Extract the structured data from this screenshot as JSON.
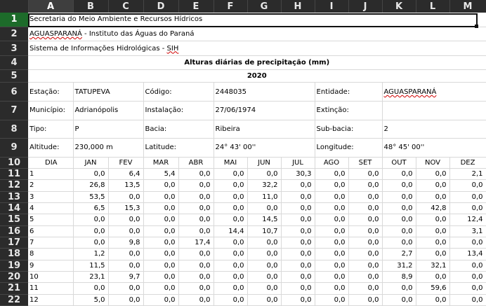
{
  "columns": [
    "A",
    "B",
    "C",
    "D",
    "E",
    "F",
    "G",
    "H",
    "I",
    "J",
    "K",
    "L",
    "M"
  ],
  "header": {
    "line1": "Secretaria do Meio Ambiente e Recursos Hídricos",
    "line2_name": "AGUASPARANÁ",
    "line2_rest": " - Instituto das Águas do Paraná",
    "line3_prefix": "Sistema de Informações Hidrológicas - ",
    "line3_abbr": "SIH",
    "title": "Alturas diárias de precipitação (mm)",
    "year": "2020"
  },
  "station": {
    "estacao_label": "Estação:",
    "estacao": "TATUPEVA",
    "codigo_label": "Código:",
    "codigo": "2448035",
    "entidade_label": "Entidade:",
    "entidade": "AGUASPARANÁ",
    "municipio_label": "Município:",
    "municipio": "Adrianópolis",
    "instalacao_label": "Instalação:",
    "instalacao": "27/06/1974",
    "extincao_label": "Extinção:",
    "extincao": "",
    "tipo_label": "Tipo:",
    "tipo": "P",
    "bacia_label": "Bacia:",
    "bacia": "Ribeira",
    "subbacia_label": "Sub-bacia:",
    "subbacia": "2",
    "altitude_label": "Altitude:",
    "altitude": "230,000 m",
    "latitude_label": "Latitude:",
    "latitude": "24° 43' 00''",
    "longitude_label": "Longitude:",
    "longitude": "48° 45' 00''"
  },
  "table": {
    "day_label": "DIA",
    "months": [
      "JAN",
      "FEV",
      "MAR",
      "ABR",
      "MAI",
      "JUN",
      "JUL",
      "AGO",
      "SET",
      "OUT",
      "NOV",
      "DEZ"
    ],
    "rows": [
      {
        "day": "1",
        "values": [
          "0,0",
          "6,4",
          "5,4",
          "0,0",
          "0,0",
          "0,0",
          "30,3",
          "0,0",
          "0,0",
          "0,0",
          "0,0",
          "2,1"
        ]
      },
      {
        "day": "2",
        "values": [
          "26,8",
          "13,5",
          "0,0",
          "0,0",
          "0,0",
          "32,2",
          "0,0",
          "0,0",
          "0,0",
          "0,0",
          "0,0",
          "0,0"
        ]
      },
      {
        "day": "3",
        "values": [
          "53,5",
          "0,0",
          "0,0",
          "0,0",
          "0,0",
          "11,0",
          "0,0",
          "0,0",
          "0,0",
          "0,0",
          "0,0",
          "0,0"
        ]
      },
      {
        "day": "4",
        "values": [
          "6,5",
          "15,3",
          "0,0",
          "0,0",
          "0,0",
          "0,0",
          "0,0",
          "0,0",
          "0,0",
          "0,0",
          "42,8",
          "0,0"
        ]
      },
      {
        "day": "5",
        "values": [
          "0,0",
          "0,0",
          "0,0",
          "0,0",
          "0,0",
          "14,5",
          "0,0",
          "0,0",
          "0,0",
          "0,0",
          "0,0",
          "12,4"
        ]
      },
      {
        "day": "6",
        "values": [
          "0,0",
          "0,0",
          "0,0",
          "0,0",
          "14,4",
          "10,7",
          "0,0",
          "0,0",
          "0,0",
          "0,0",
          "0,0",
          "3,1"
        ]
      },
      {
        "day": "7",
        "values": [
          "0,0",
          "9,8",
          "0,0",
          "17,4",
          "0,0",
          "0,0",
          "0,0",
          "0,0",
          "0,0",
          "0,0",
          "0,0",
          "0,0"
        ]
      },
      {
        "day": "8",
        "values": [
          "1,2",
          "0,0",
          "0,0",
          "0,0",
          "0,0",
          "0,0",
          "0,0",
          "0,0",
          "0,0",
          "2,7",
          "0,0",
          "13,4"
        ]
      },
      {
        "day": "9",
        "values": [
          "11,5",
          "0,0",
          "0,0",
          "0,0",
          "0,0",
          "0,0",
          "0,0",
          "0,0",
          "0,0",
          "31,2",
          "32,1",
          "0,0"
        ]
      },
      {
        "day": "10",
        "values": [
          "23,1",
          "9,7",
          "0,0",
          "0,0",
          "0,0",
          "0,0",
          "0,0",
          "0,0",
          "0,0",
          "8,9",
          "0,0",
          "0,0"
        ]
      },
      {
        "day": "11",
        "values": [
          "0,0",
          "0,0",
          "0,0",
          "0,0",
          "0,0",
          "0,0",
          "0,0",
          "0,0",
          "0,0",
          "0,0",
          "59,6",
          "0,0"
        ]
      },
      {
        "day": "12",
        "values": [
          "5,0",
          "0,0",
          "0,0",
          "0,0",
          "0,0",
          "0,0",
          "0,0",
          "0,0",
          "0,0",
          "0,0",
          "0,0",
          "0,0"
        ]
      }
    ]
  }
}
